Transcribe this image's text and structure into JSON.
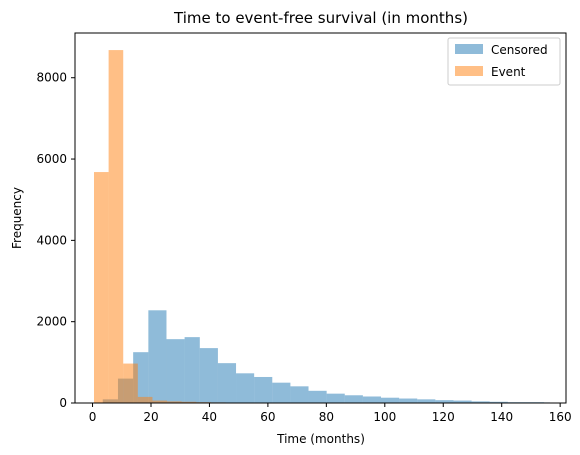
{
  "chart_data": {
    "type": "bar",
    "title": "Time to event-free survival (in months)",
    "xlabel": "Time (months)",
    "ylabel": "Frequency",
    "xlim": [
      -6,
      162
    ],
    "ylim": [
      0,
      9100
    ],
    "xticks": [
      0,
      20,
      40,
      60,
      80,
      100,
      120,
      140,
      160
    ],
    "yticks": [
      0,
      2000,
      4000,
      6000,
      8000
    ],
    "grid": false,
    "legend_position": "top-right",
    "series": [
      {
        "name": "Censored",
        "color": "#1f77b4",
        "opacity": 0.5,
        "bins": [
          {
            "x0": 3.5,
            "x1": 8.7,
            "value": 90
          },
          {
            "x0": 8.7,
            "x1": 13.9,
            "value": 600
          },
          {
            "x0": 13.9,
            "x1": 19.1,
            "value": 1250
          },
          {
            "x0": 19.1,
            "x1": 25.3,
            "value": 2280
          },
          {
            "x0": 25.3,
            "x1": 31.5,
            "value": 1570
          },
          {
            "x0": 31.5,
            "x1": 36.7,
            "value": 1620
          },
          {
            "x0": 36.7,
            "x1": 42.9,
            "value": 1350
          },
          {
            "x0": 42.9,
            "x1": 49.1,
            "value": 980
          },
          {
            "x0": 49.1,
            "x1": 55.3,
            "value": 730
          },
          {
            "x0": 55.3,
            "x1": 61.5,
            "value": 640
          },
          {
            "x0": 61.5,
            "x1": 67.7,
            "value": 500
          },
          {
            "x0": 67.7,
            "x1": 73.9,
            "value": 410
          },
          {
            "x0": 73.9,
            "x1": 80.1,
            "value": 300
          },
          {
            "x0": 80.1,
            "x1": 86.3,
            "value": 230
          },
          {
            "x0": 86.3,
            "x1": 92.5,
            "value": 190
          },
          {
            "x0": 92.5,
            "x1": 98.7,
            "value": 160
          },
          {
            "x0": 98.7,
            "x1": 104.9,
            "value": 130
          },
          {
            "x0": 104.9,
            "x1": 111.1,
            "value": 110
          },
          {
            "x0": 111.1,
            "x1": 117.3,
            "value": 90
          },
          {
            "x0": 117.3,
            "x1": 123.5,
            "value": 70
          },
          {
            "x0": 123.5,
            "x1": 129.7,
            "value": 60
          },
          {
            "x0": 129.7,
            "x1": 135.9,
            "value": 40
          },
          {
            "x0": 135.9,
            "x1": 142.1,
            "value": 30
          },
          {
            "x0": 142.1,
            "x1": 148.3,
            "value": 20
          },
          {
            "x0": 148.3,
            "x1": 154.5,
            "value": 20
          },
          {
            "x0": 154.5,
            "x1": 156.5,
            "value": 15
          }
        ]
      },
      {
        "name": "Event",
        "color": "#ff7f0e",
        "opacity": 0.5,
        "bins": [
          {
            "x0": 0.5,
            "x1": 5.5,
            "value": 5680
          },
          {
            "x0": 5.5,
            "x1": 10.5,
            "value": 8680
          },
          {
            "x0": 10.5,
            "x1": 15.5,
            "value": 970
          },
          {
            "x0": 15.5,
            "x1": 20.5,
            "value": 150
          },
          {
            "x0": 20.5,
            "x1": 25.5,
            "value": 60
          },
          {
            "x0": 25.5,
            "x1": 30.5,
            "value": 40
          },
          {
            "x0": 30.5,
            "x1": 35.5,
            "value": 30
          },
          {
            "x0": 35.5,
            "x1": 40.5,
            "value": 20
          },
          {
            "x0": 40.5,
            "x1": 45.5,
            "value": 15
          },
          {
            "x0": 45.5,
            "x1": 50.5,
            "value": 12
          },
          {
            "x0": 50.5,
            "x1": 60.5,
            "value": 10
          },
          {
            "x0": 60.5,
            "x1": 75.5,
            "value": 6
          },
          {
            "x0": 75.5,
            "x1": 100.5,
            "value": 4
          }
        ]
      }
    ]
  }
}
